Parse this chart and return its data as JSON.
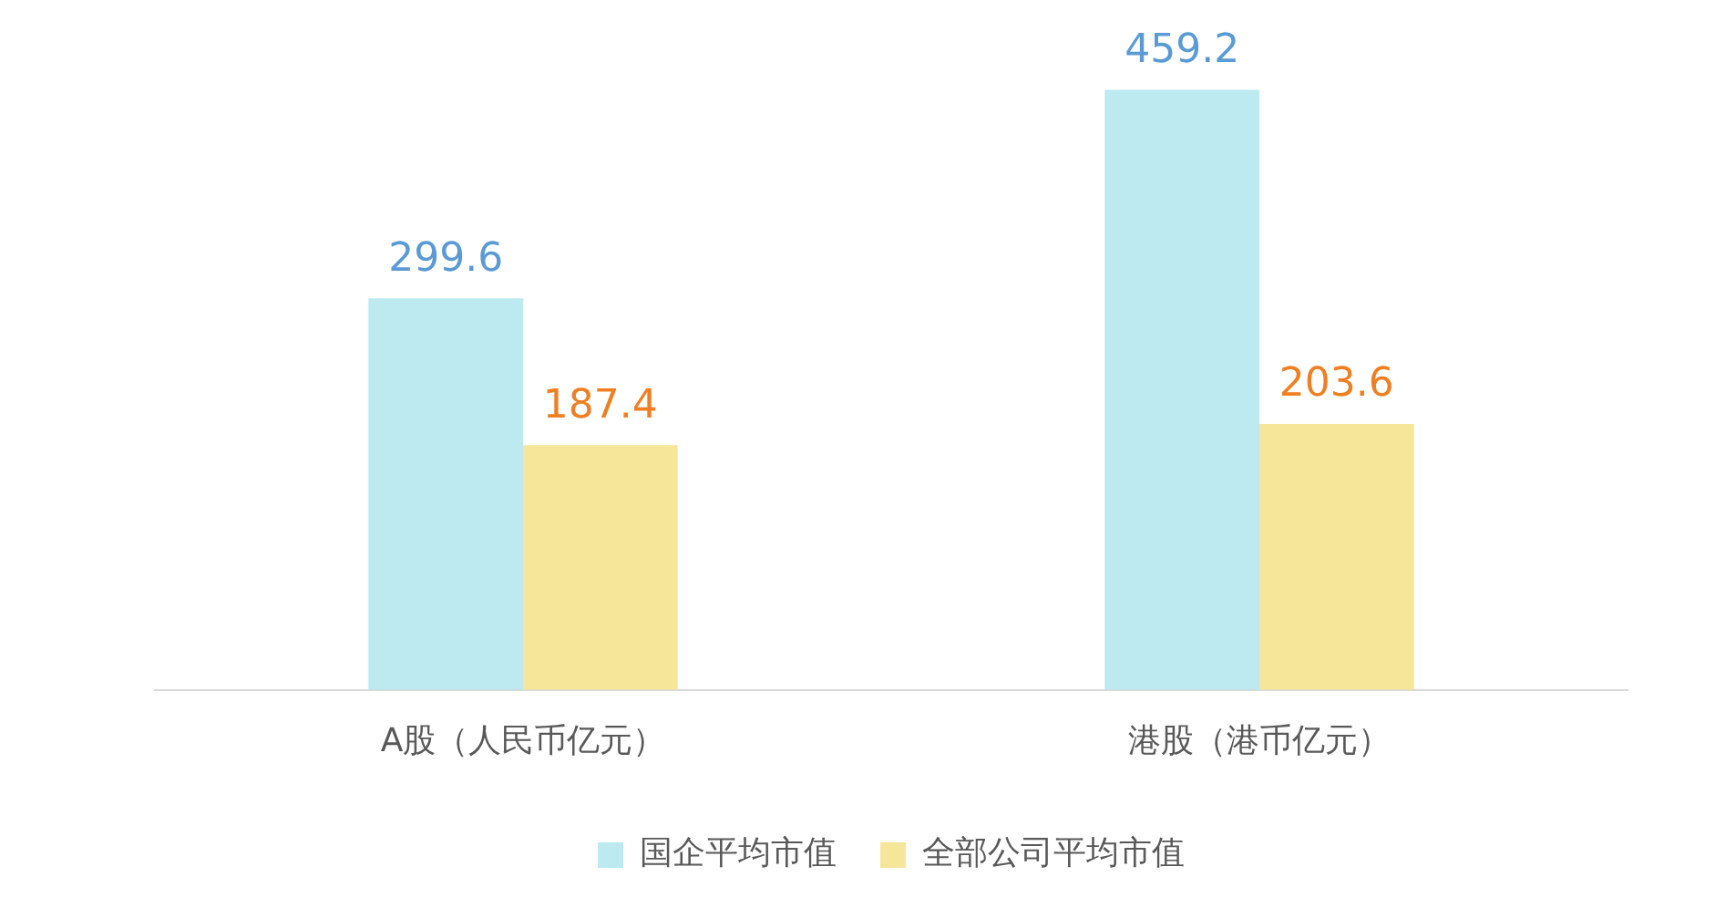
{
  "chart_data": {
    "type": "bar",
    "categories": [
      "A股（人民币亿元）",
      "港股（港币亿元）"
    ],
    "series": [
      {
        "name": "国企平均市值",
        "color": "#bde9f0",
        "values": [
          299.6,
          459.2
        ]
      },
      {
        "name": "全部公司平均市值",
        "color": "#f5e69a",
        "values": [
          187.4,
          203.6
        ]
      }
    ],
    "data_labels": true,
    "grid": false,
    "legend": "bottom"
  }
}
